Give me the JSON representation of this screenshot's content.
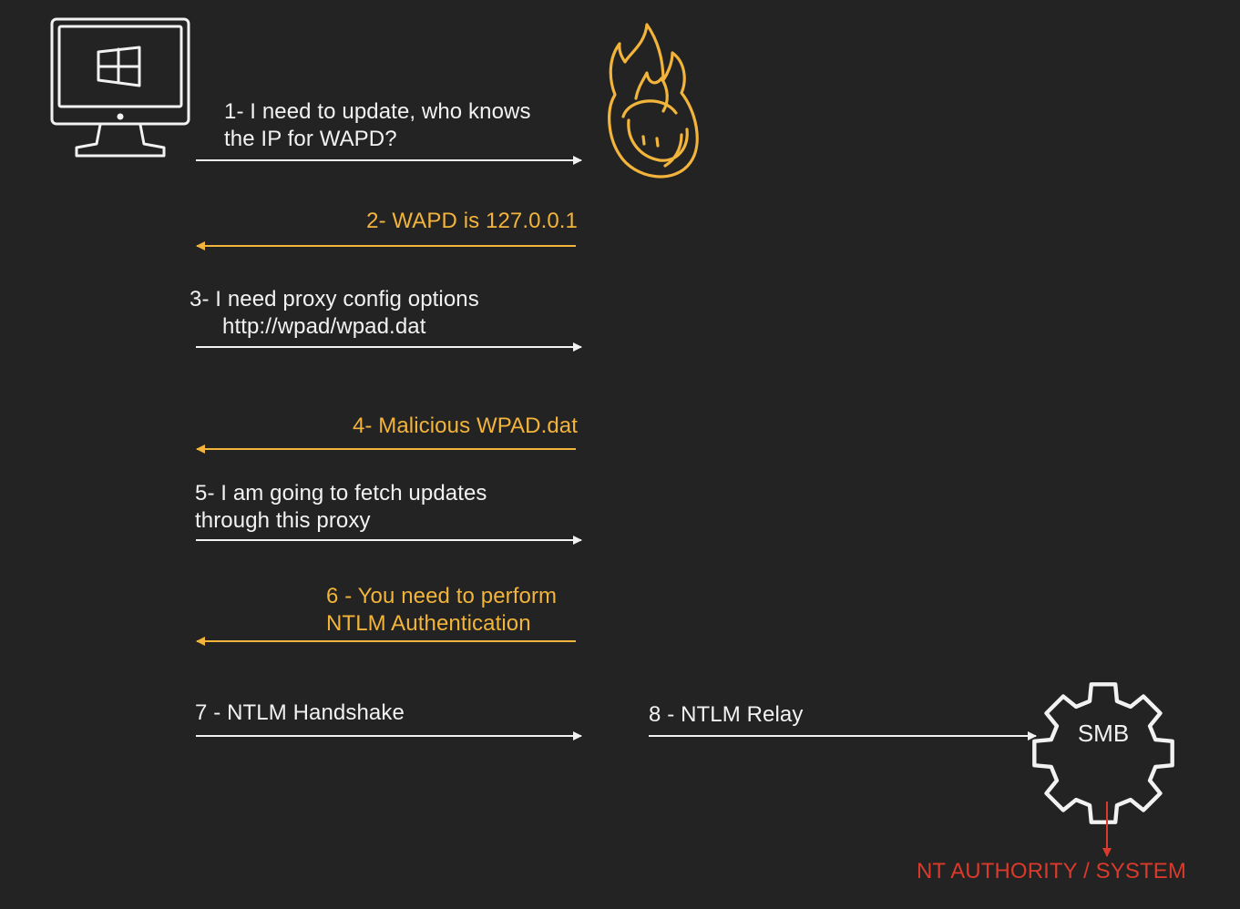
{
  "colors": {
    "background": "#232323",
    "client": "#f2f2f2",
    "attacker": "#f2b43a",
    "result": "#d93a2b"
  },
  "icons": {
    "client": "windows-computer-icon",
    "attacker": "fire-icon",
    "server": "gear-icon"
  },
  "steps": {
    "s1": {
      "line1": "1- I need to update, who knows",
      "line2": "the IP for WAPD?"
    },
    "s2": {
      "line1": "2- WAPD is 127.0.0.1"
    },
    "s3": {
      "line1": "3- I need proxy config options",
      "line2": "http://wpad/wpad.dat"
    },
    "s4": {
      "line1": "4- Malicious WPAD.dat"
    },
    "s5": {
      "line1": "5- I am going to fetch updates",
      "line2": "through this proxy"
    },
    "s6": {
      "line1": "6 - You need to perform",
      "line2": "NTLM Authentication"
    },
    "s7": {
      "line1": "7 - NTLM Handshake"
    },
    "s8": {
      "line1": "8 - NTLM Relay"
    }
  },
  "server": {
    "label": "SMB"
  },
  "result": {
    "label": "NT AUTHORITY / SYSTEM"
  }
}
